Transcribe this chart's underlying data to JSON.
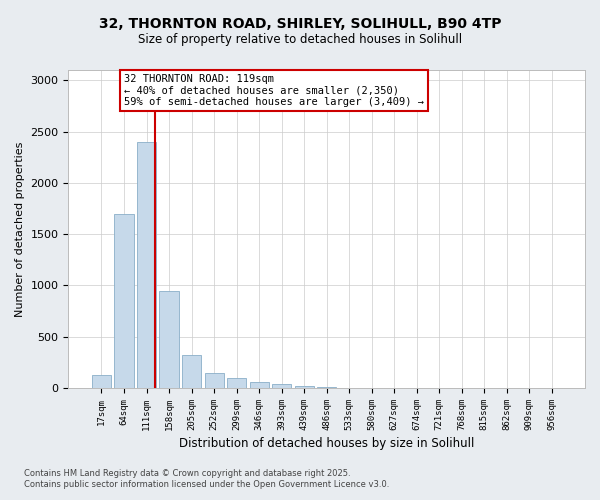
{
  "title_line1": "32, THORNTON ROAD, SHIRLEY, SOLIHULL, B90 4TP",
  "title_line2": "Size of property relative to detached houses in Solihull",
  "xlabel": "Distribution of detached houses by size in Solihull",
  "ylabel": "Number of detached properties",
  "categories": [
    "17sqm",
    "64sqm",
    "111sqm",
    "158sqm",
    "205sqm",
    "252sqm",
    "299sqm",
    "346sqm",
    "393sqm",
    "439sqm",
    "486sqm",
    "533sqm",
    "580sqm",
    "627sqm",
    "674sqm",
    "721sqm",
    "768sqm",
    "815sqm",
    "862sqm",
    "909sqm",
    "956sqm"
  ],
  "values": [
    125,
    1700,
    2400,
    950,
    320,
    150,
    95,
    55,
    40,
    25,
    15,
    5,
    2,
    0,
    0,
    0,
    0,
    0,
    0,
    0,
    0
  ],
  "bar_color": "#c6d9ea",
  "bar_edgecolor": "#8aafc8",
  "red_line_index": 2,
  "red_line_color": "#cc0000",
  "annotation_text": "32 THORNTON ROAD: 119sqm\n← 40% of detached houses are smaller (2,350)\n59% of semi-detached houses are larger (3,409) →",
  "annotation_box_facecolor": "#ffffff",
  "annotation_box_edgecolor": "#cc0000",
  "ylim": [
    0,
    3100
  ],
  "yticks": [
    0,
    500,
    1000,
    1500,
    2000,
    2500,
    3000
  ],
  "footer_line1": "Contains HM Land Registry data © Crown copyright and database right 2025.",
  "footer_line2": "Contains public sector information licensed under the Open Government Licence v3.0.",
  "bg_color": "#e8ecf0",
  "plot_bg_color": "#ffffff",
  "grid_color": "#cccccc",
  "title1_fontsize": 10,
  "title2_fontsize": 8.5
}
